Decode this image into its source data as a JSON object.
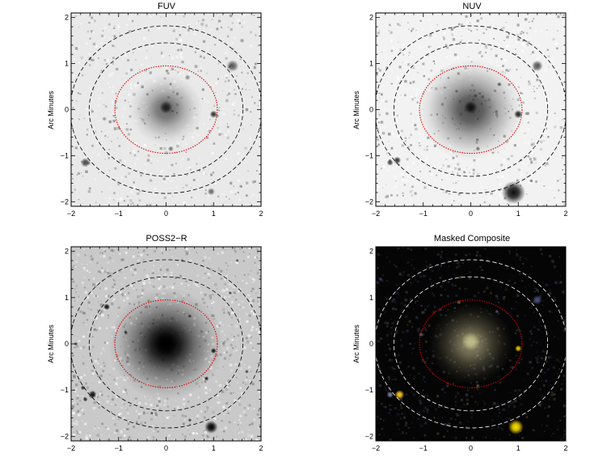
{
  "figure": {
    "panels": [
      {
        "id": "fuv",
        "title": "FUV",
        "ylabel": "Arc Minutes",
        "style": "gray",
        "background": "#e9e9e9",
        "noise": 0.18,
        "core_strength": 0.55,
        "core_size": 0.35,
        "inner_ellipse_color": "#e00000",
        "outer_ellipse_color": "#000000",
        "xticks": [
          "−2",
          "−1",
          "0",
          "1",
          "2"
        ],
        "yticks": [
          "−2",
          "−1",
          "0",
          "1",
          "2"
        ],
        "sources": [
          {
            "x": 0.0,
            "y": 0.05,
            "r": 0.14,
            "v": 0.75
          },
          {
            "x": 1.4,
            "y": 0.95,
            "r": 0.13,
            "v": 0.6
          },
          {
            "x": 1.0,
            "y": -0.1,
            "r": 0.08,
            "v": 0.8
          },
          {
            "x": -1.7,
            "y": -1.15,
            "r": 0.1,
            "v": 0.7
          },
          {
            "x": 0.95,
            "y": -1.78,
            "r": 0.08,
            "v": 0.55
          },
          {
            "x": 0.1,
            "y": -0.85,
            "r": 0.06,
            "v": 0.5
          },
          {
            "x": -1.3,
            "y": -0.2,
            "r": 0.05,
            "v": 0.35
          },
          {
            "x": 0.45,
            "y": 0.7,
            "r": 0.06,
            "v": 0.4
          },
          {
            "x": 1.6,
            "y": 1.5,
            "r": 0.05,
            "v": 0.35
          }
        ]
      },
      {
        "id": "nuv",
        "title": "NUV",
        "ylabel": "Arc Minutes",
        "style": "gray",
        "background": "#f2f2f2",
        "noise": 0.22,
        "core_strength": 0.7,
        "core_size": 0.5,
        "inner_ellipse_color": "#e00000",
        "outer_ellipse_color": "#000000",
        "xticks": [
          "−2",
          "−1",
          "0",
          "1",
          "2"
        ],
        "yticks": [
          "−2",
          "−1",
          "0",
          "1",
          "2"
        ],
        "sources": [
          {
            "x": 0.0,
            "y": 0.05,
            "r": 0.14,
            "v": 0.8
          },
          {
            "x": 1.4,
            "y": 0.95,
            "r": 0.12,
            "v": 0.65
          },
          {
            "x": 1.0,
            "y": -0.1,
            "r": 0.09,
            "v": 0.85
          },
          {
            "x": 0.9,
            "y": -1.8,
            "r": 0.25,
            "v": 0.95
          },
          {
            "x": -1.55,
            "y": -1.1,
            "r": 0.08,
            "v": 0.8
          },
          {
            "x": -1.7,
            "y": -1.15,
            "r": 0.07,
            "v": 0.7
          },
          {
            "x": 0.6,
            "y": 0.55,
            "r": 0.05,
            "v": 0.5
          },
          {
            "x": 0.15,
            "y": -0.85,
            "r": 0.05,
            "v": 0.5
          },
          {
            "x": -0.3,
            "y": 0.4,
            "r": 0.04,
            "v": 0.4
          }
        ]
      },
      {
        "id": "poss2r",
        "title": "POSS2−R",
        "ylabel": "Arc Minutes",
        "style": "gray",
        "background": "#c9c9c9",
        "noise": 0.3,
        "core_strength": 1.0,
        "core_size": 0.55,
        "inner_ellipse_color": "#e00000",
        "outer_ellipse_color": "#000000",
        "xticks": [
          "−2",
          "−1",
          "0",
          "1",
          "2"
        ],
        "yticks": [
          "−2",
          "−1",
          "0",
          "1",
          "2"
        ],
        "sources": [
          {
            "x": 0.0,
            "y": 0.0,
            "r": 0.28,
            "v": 1.0
          },
          {
            "x": -1.25,
            "y": 0.8,
            "r": 0.07,
            "v": 0.95
          },
          {
            "x": 0.95,
            "y": -1.8,
            "r": 0.14,
            "v": 1.0
          },
          {
            "x": -1.55,
            "y": -1.1,
            "r": 0.09,
            "v": 0.95
          },
          {
            "x": 1.0,
            "y": -0.15,
            "r": 0.06,
            "v": 0.9
          },
          {
            "x": -1.75,
            "y": -0.95,
            "r": 0.05,
            "v": 0.8
          },
          {
            "x": 0.85,
            "y": -0.75,
            "r": 0.05,
            "v": 0.85
          },
          {
            "x": -1.7,
            "y": -1.2,
            "r": 0.05,
            "v": 0.8
          },
          {
            "x": -0.85,
            "y": 0.25,
            "r": 0.04,
            "v": 0.75
          },
          {
            "x": 0.5,
            "y": 0.6,
            "r": 0.04,
            "v": 0.7
          },
          {
            "x": 1.35,
            "y": 1.1,
            "r": 0.04,
            "v": 0.7
          },
          {
            "x": 0.5,
            "y": -1.65,
            "r": 0.04,
            "v": 0.7
          },
          {
            "x": -1.9,
            "y": 0.0,
            "r": 0.04,
            "v": 0.75
          },
          {
            "x": 1.7,
            "y": -0.6,
            "r": 0.04,
            "v": 0.7
          },
          {
            "x": -0.3,
            "y": -1.5,
            "r": 0.035,
            "v": 0.7
          },
          {
            "x": 1.5,
            "y": 1.8,
            "r": 0.035,
            "v": 0.7
          }
        ]
      },
      {
        "id": "composite",
        "title": "Masked Composite",
        "ylabel": "Arc Minutes",
        "style": "color",
        "background": "#050505",
        "noise": 0.18,
        "core_strength": 0.55,
        "core_size": 0.4,
        "inner_ellipse_color": "#d00000",
        "outer_ellipse_color": "#ffffff",
        "xticks": [
          "−2",
          "−1",
          "0",
          "1",
          "2"
        ],
        "yticks": [
          "−2",
          "−1",
          "0",
          "1",
          "2"
        ],
        "sources": [
          {
            "x": 0.0,
            "y": 0.05,
            "r": 0.2,
            "v": 0.75,
            "color": "#d8d49a"
          },
          {
            "x": 0.95,
            "y": -1.8,
            "r": 0.16,
            "v": 1.0,
            "color": "#ffe000"
          },
          {
            "x": -1.5,
            "y": -1.1,
            "r": 0.1,
            "v": 1.0,
            "color": "#ffcc22"
          },
          {
            "x": 1.0,
            "y": -0.1,
            "r": 0.07,
            "v": 0.95,
            "color": "#ffd000"
          },
          {
            "x": 1.4,
            "y": 0.95,
            "r": 0.1,
            "v": 0.6,
            "color": "#7788cc"
          },
          {
            "x": -1.7,
            "y": -1.1,
            "r": 0.07,
            "v": 0.7,
            "color": "#aabbdd"
          },
          {
            "x": -1.05,
            "y": 0.2,
            "r": 0.05,
            "v": 0.6,
            "color": "#8fa0c0"
          },
          {
            "x": -0.25,
            "y": 0.9,
            "r": 0.05,
            "v": 0.55,
            "color": "#c0a060"
          },
          {
            "x": 0.55,
            "y": 0.7,
            "r": 0.04,
            "v": 0.5,
            "color": "#9aaad0"
          },
          {
            "x": 0.15,
            "y": -0.9,
            "r": 0.04,
            "v": 0.5,
            "color": "#b0a070"
          },
          {
            "x": -1.9,
            "y": 1.4,
            "r": 0.04,
            "v": 0.5,
            "color": "#7788bb"
          }
        ]
      }
    ]
  }
}
